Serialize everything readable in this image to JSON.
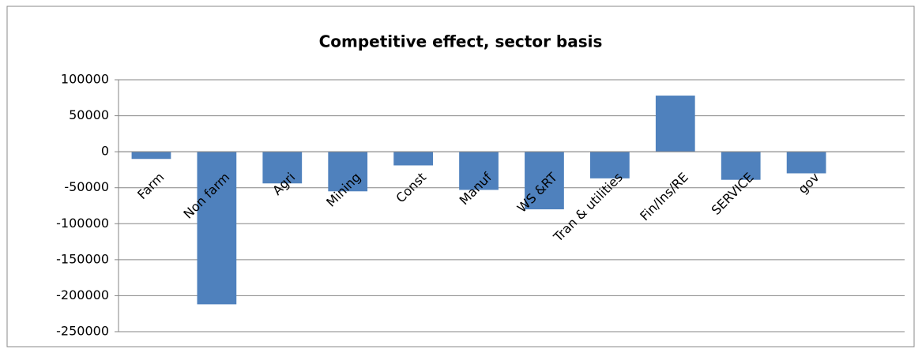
{
  "chart_data": {
    "type": "bar",
    "title": "Competitive effect, sector basis",
    "categories": [
      "Farm",
      "Non farm",
      "Agri",
      "Mining",
      "Const",
      "Manuf",
      "WS &RT",
      "Tran & utilities",
      "Fin/Ins/RE",
      "SERVICE",
      "gov",
      null
    ],
    "values": [
      -10000,
      -212000,
      -44000,
      -55000,
      -19000,
      -53000,
      -80000,
      -37000,
      78000,
      -39000,
      -30000,
      null
    ],
    "color": "#4f81bd",
    "ylim": [
      -250000,
      100000
    ],
    "yticks": [
      -250000,
      -200000,
      -150000,
      -100000,
      -50000,
      0,
      50000,
      100000
    ],
    "grid": true
  }
}
